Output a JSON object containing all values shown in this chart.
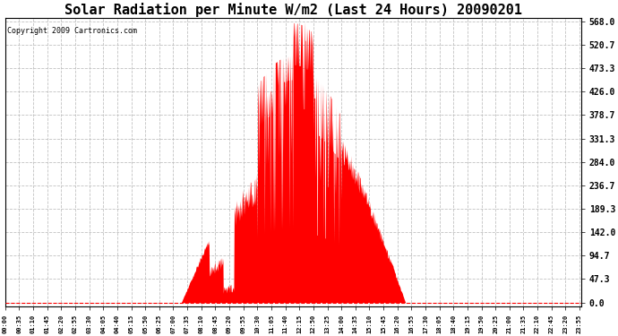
{
  "title": "Solar Radiation per Minute W/m2 (Last 24 Hours) 20090201",
  "copyright": "Copyright 2009 Cartronics.com",
  "title_fontsize": 11,
  "copyright_fontsize": 6,
  "background_color": "#ffffff",
  "plot_bg_color": "#ffffff",
  "fill_color": "#ff0000",
  "line_color": "#ff0000",
  "grid_color": "#bbbbbb",
  "ytick_labels": [
    "0.0",
    "47.3",
    "94.7",
    "142.0",
    "189.3",
    "236.7",
    "284.0",
    "331.3",
    "378.7",
    "426.0",
    "473.3",
    "520.7",
    "568.0"
  ],
  "ytick_values": [
    0.0,
    47.3,
    94.7,
    142.0,
    189.3,
    236.7,
    284.0,
    331.3,
    378.7,
    426.0,
    473.3,
    520.7,
    568.0
  ],
  "ymin": -8,
  "ymax": 575,
  "num_minutes": 1440,
  "xtick_step": 35,
  "sunrise_minute": 440,
  "sunset_minute": 1000
}
